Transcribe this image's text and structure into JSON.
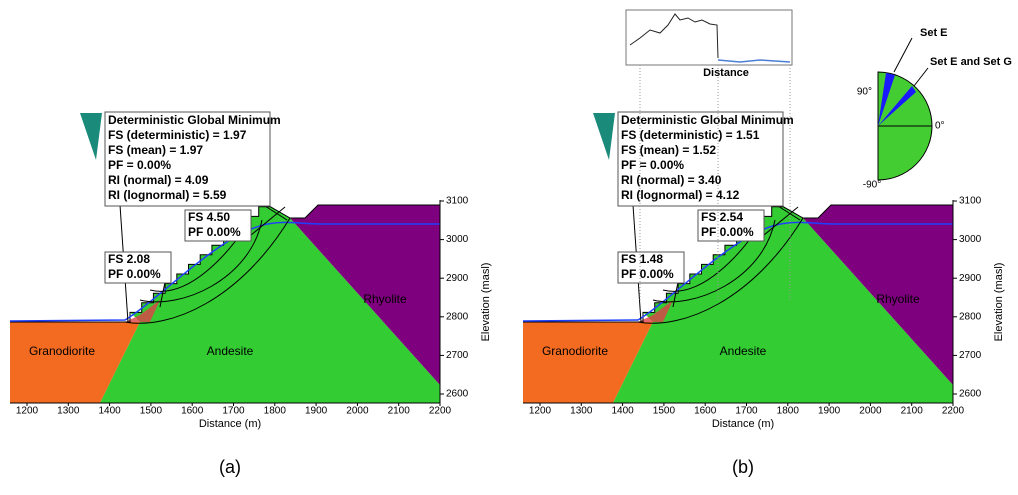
{
  "panels": [
    {
      "label": "(a)",
      "info": {
        "title": "Deterministic Global Minimum",
        "lines": [
          "FS (deterministic) = 1.97",
          "FS (mean) = 1.97",
          "PF = 0.00%",
          "RI (normal) = 4.09",
          "RI (lognormal) = 5.59"
        ]
      },
      "callouts": [
        {
          "lines": [
            "FS 2.08",
            "PF 0.00%"
          ]
        },
        {
          "lines": [
            "FS 4.50",
            "PF 0.00%"
          ]
        }
      ],
      "units": [
        "Granodiorite",
        "Andesite",
        "Rhyolite"
      ],
      "x_ticks": [
        1200,
        1300,
        1400,
        1500,
        1600,
        1700,
        1800,
        1900,
        2000,
        2100,
        2200
      ],
      "x_title": "Distance (m)",
      "y_ticks": [
        3100,
        3000,
        2900,
        2800,
        2700,
        2600
      ],
      "y_title": "Elevation (masl)"
    },
    {
      "label": "(b)",
      "info": {
        "title": "Deterministic Global Minimum",
        "lines": [
          "FS (deterministic) = 1.51",
          "FS (mean) = 1.52",
          "PF = 0.00%",
          "RI (normal) = 3.40",
          "RI (lognormal) = 4.12"
        ]
      },
      "callouts": [
        {
          "lines": [
            "FS 1.48",
            "PF 0.00%"
          ]
        },
        {
          "lines": [
            "FS 2.54",
            "PF 0.00%"
          ]
        }
      ],
      "units": [
        "Granodiorite",
        "Andesite",
        "Rhyolite"
      ],
      "x_ticks": [
        1200,
        1300,
        1400,
        1500,
        1600,
        1700,
        1800,
        1900,
        2000,
        2100,
        2200
      ],
      "x_title": "Distance (m)",
      "y_ticks": [
        3100,
        3000,
        2900,
        2800,
        2700,
        2600
      ],
      "y_title": "Elevation (masl)"
    }
  ],
  "inset": {
    "title": "Distance"
  },
  "stereonet": {
    "top": "90°",
    "right": "0°",
    "bottom": "-90°",
    "sets": [
      "Set E",
      "Set E and Set G"
    ]
  }
}
